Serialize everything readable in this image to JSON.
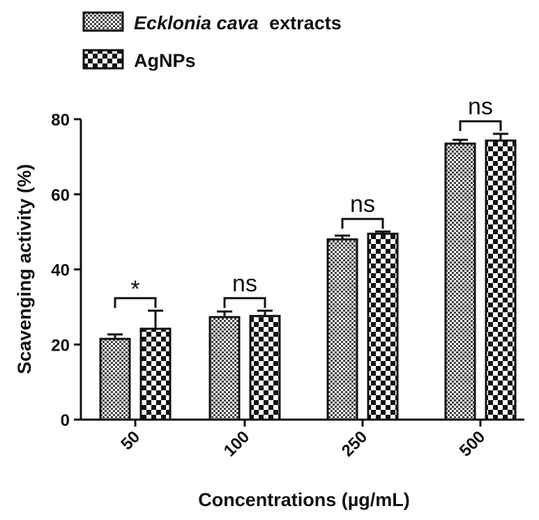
{
  "chart_data": {
    "type": "bar",
    "xlabel": "Concentrations (µg/mL)",
    "ylabel": "Scavenging activity (%)",
    "ylim": [
      0,
      80
    ],
    "yticks": [
      0,
      20,
      40,
      60,
      80
    ],
    "categories": [
      "50",
      "100",
      "250",
      "500"
    ],
    "series": [
      {
        "name": "extracts",
        "name_prefix_italic": "Ecklonia cava",
        "pattern": "fine-checker",
        "values": [
          21.5,
          27.3,
          48.0,
          73.5
        ],
        "errors": [
          1.2,
          1.5,
          1.0,
          1.0
        ]
      },
      {
        "name": "AgNPs",
        "pattern": "coarse-checker",
        "values": [
          24.2,
          27.6,
          49.5,
          74.3
        ],
        "errors": [
          4.8,
          1.4,
          0.6,
          1.8
        ]
      }
    ],
    "significance": [
      "*",
      "ns",
      "ns",
      "ns"
    ],
    "legend_position": "top-left",
    "grid": false
  }
}
